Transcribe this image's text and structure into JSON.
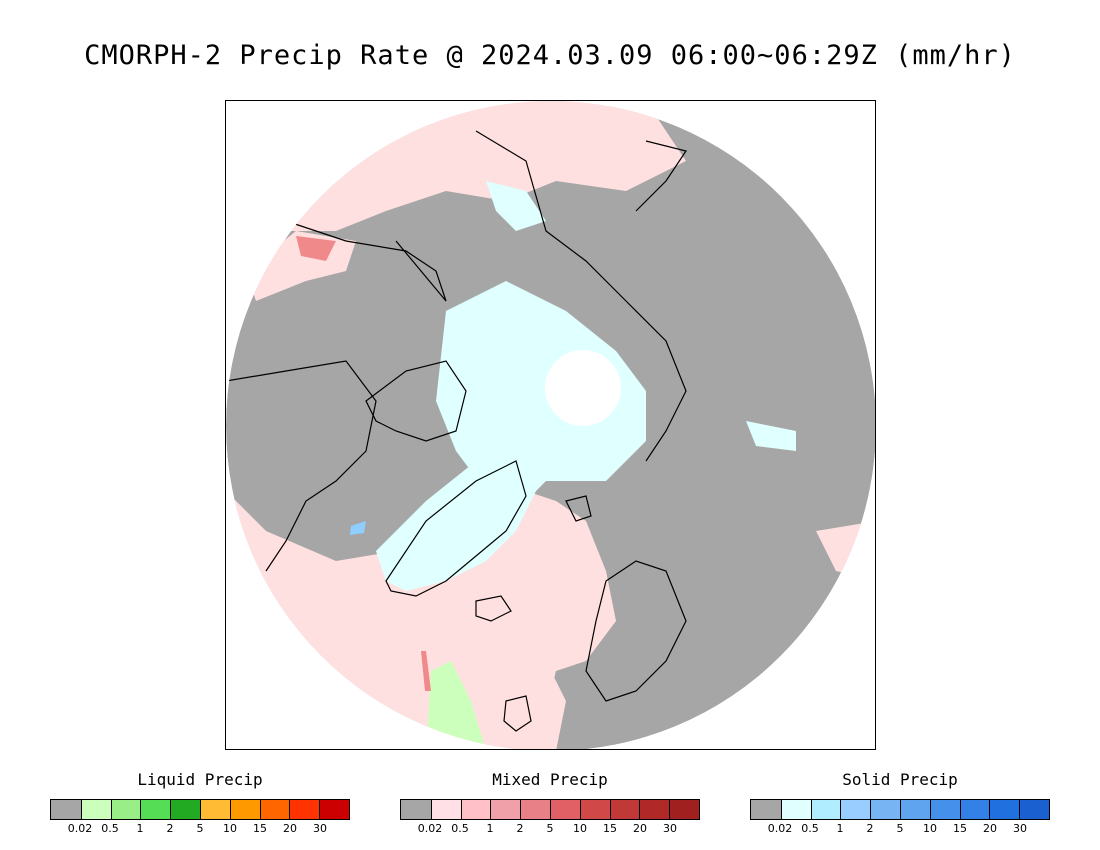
{
  "title": "CMORPH-2 Precip Rate @ 2024.03.09 06:00~06:29Z (mm/hr)",
  "map": {
    "projection": "north polar stereographic",
    "colors": {
      "no_precip": "#a6a6a6",
      "mixed_light": "#ffe0e0",
      "solid_light": "#e0ffff",
      "pole_hole": "#ffffff",
      "coastline": "#000000",
      "liquid_light": "#ccffbb",
      "mixed_moderate": "#f08a8a",
      "solid_moderate": "#8fcfff"
    }
  },
  "legends": [
    {
      "title": "Liquid Precip",
      "colors": [
        "#a6a6a6",
        "#ccffbb",
        "#99ee88",
        "#55dd55",
        "#22aa22",
        "#ffbb33",
        "#ff9900",
        "#ff6600",
        "#ff3300",
        "#cc0000"
      ],
      "ticks": [
        "0.02",
        "0.5",
        "1",
        "2",
        "5",
        "10",
        "15",
        "20",
        "30"
      ]
    },
    {
      "title": "Mixed Precip",
      "colors": [
        "#a6a6a6",
        "#ffe0e6",
        "#ffc0c8",
        "#f0a0a8",
        "#e88088",
        "#e06066",
        "#d04848",
        "#c03838",
        "#b02828",
        "#a02020"
      ],
      "ticks": [
        "0.02",
        "0.5",
        "1",
        "2",
        "5",
        "10",
        "15",
        "20",
        "30"
      ]
    },
    {
      "title": "Solid Precip",
      "colors": [
        "#a6a6a6",
        "#e0ffff",
        "#b0eeff",
        "#99ccff",
        "#77b4f4",
        "#5fa4ee",
        "#4490ea",
        "#3380e6",
        "#2070e0",
        "#1a60d0"
      ],
      "ticks": [
        "0.02",
        "0.5",
        "1",
        "2",
        "5",
        "10",
        "15",
        "20",
        "30"
      ]
    }
  ]
}
